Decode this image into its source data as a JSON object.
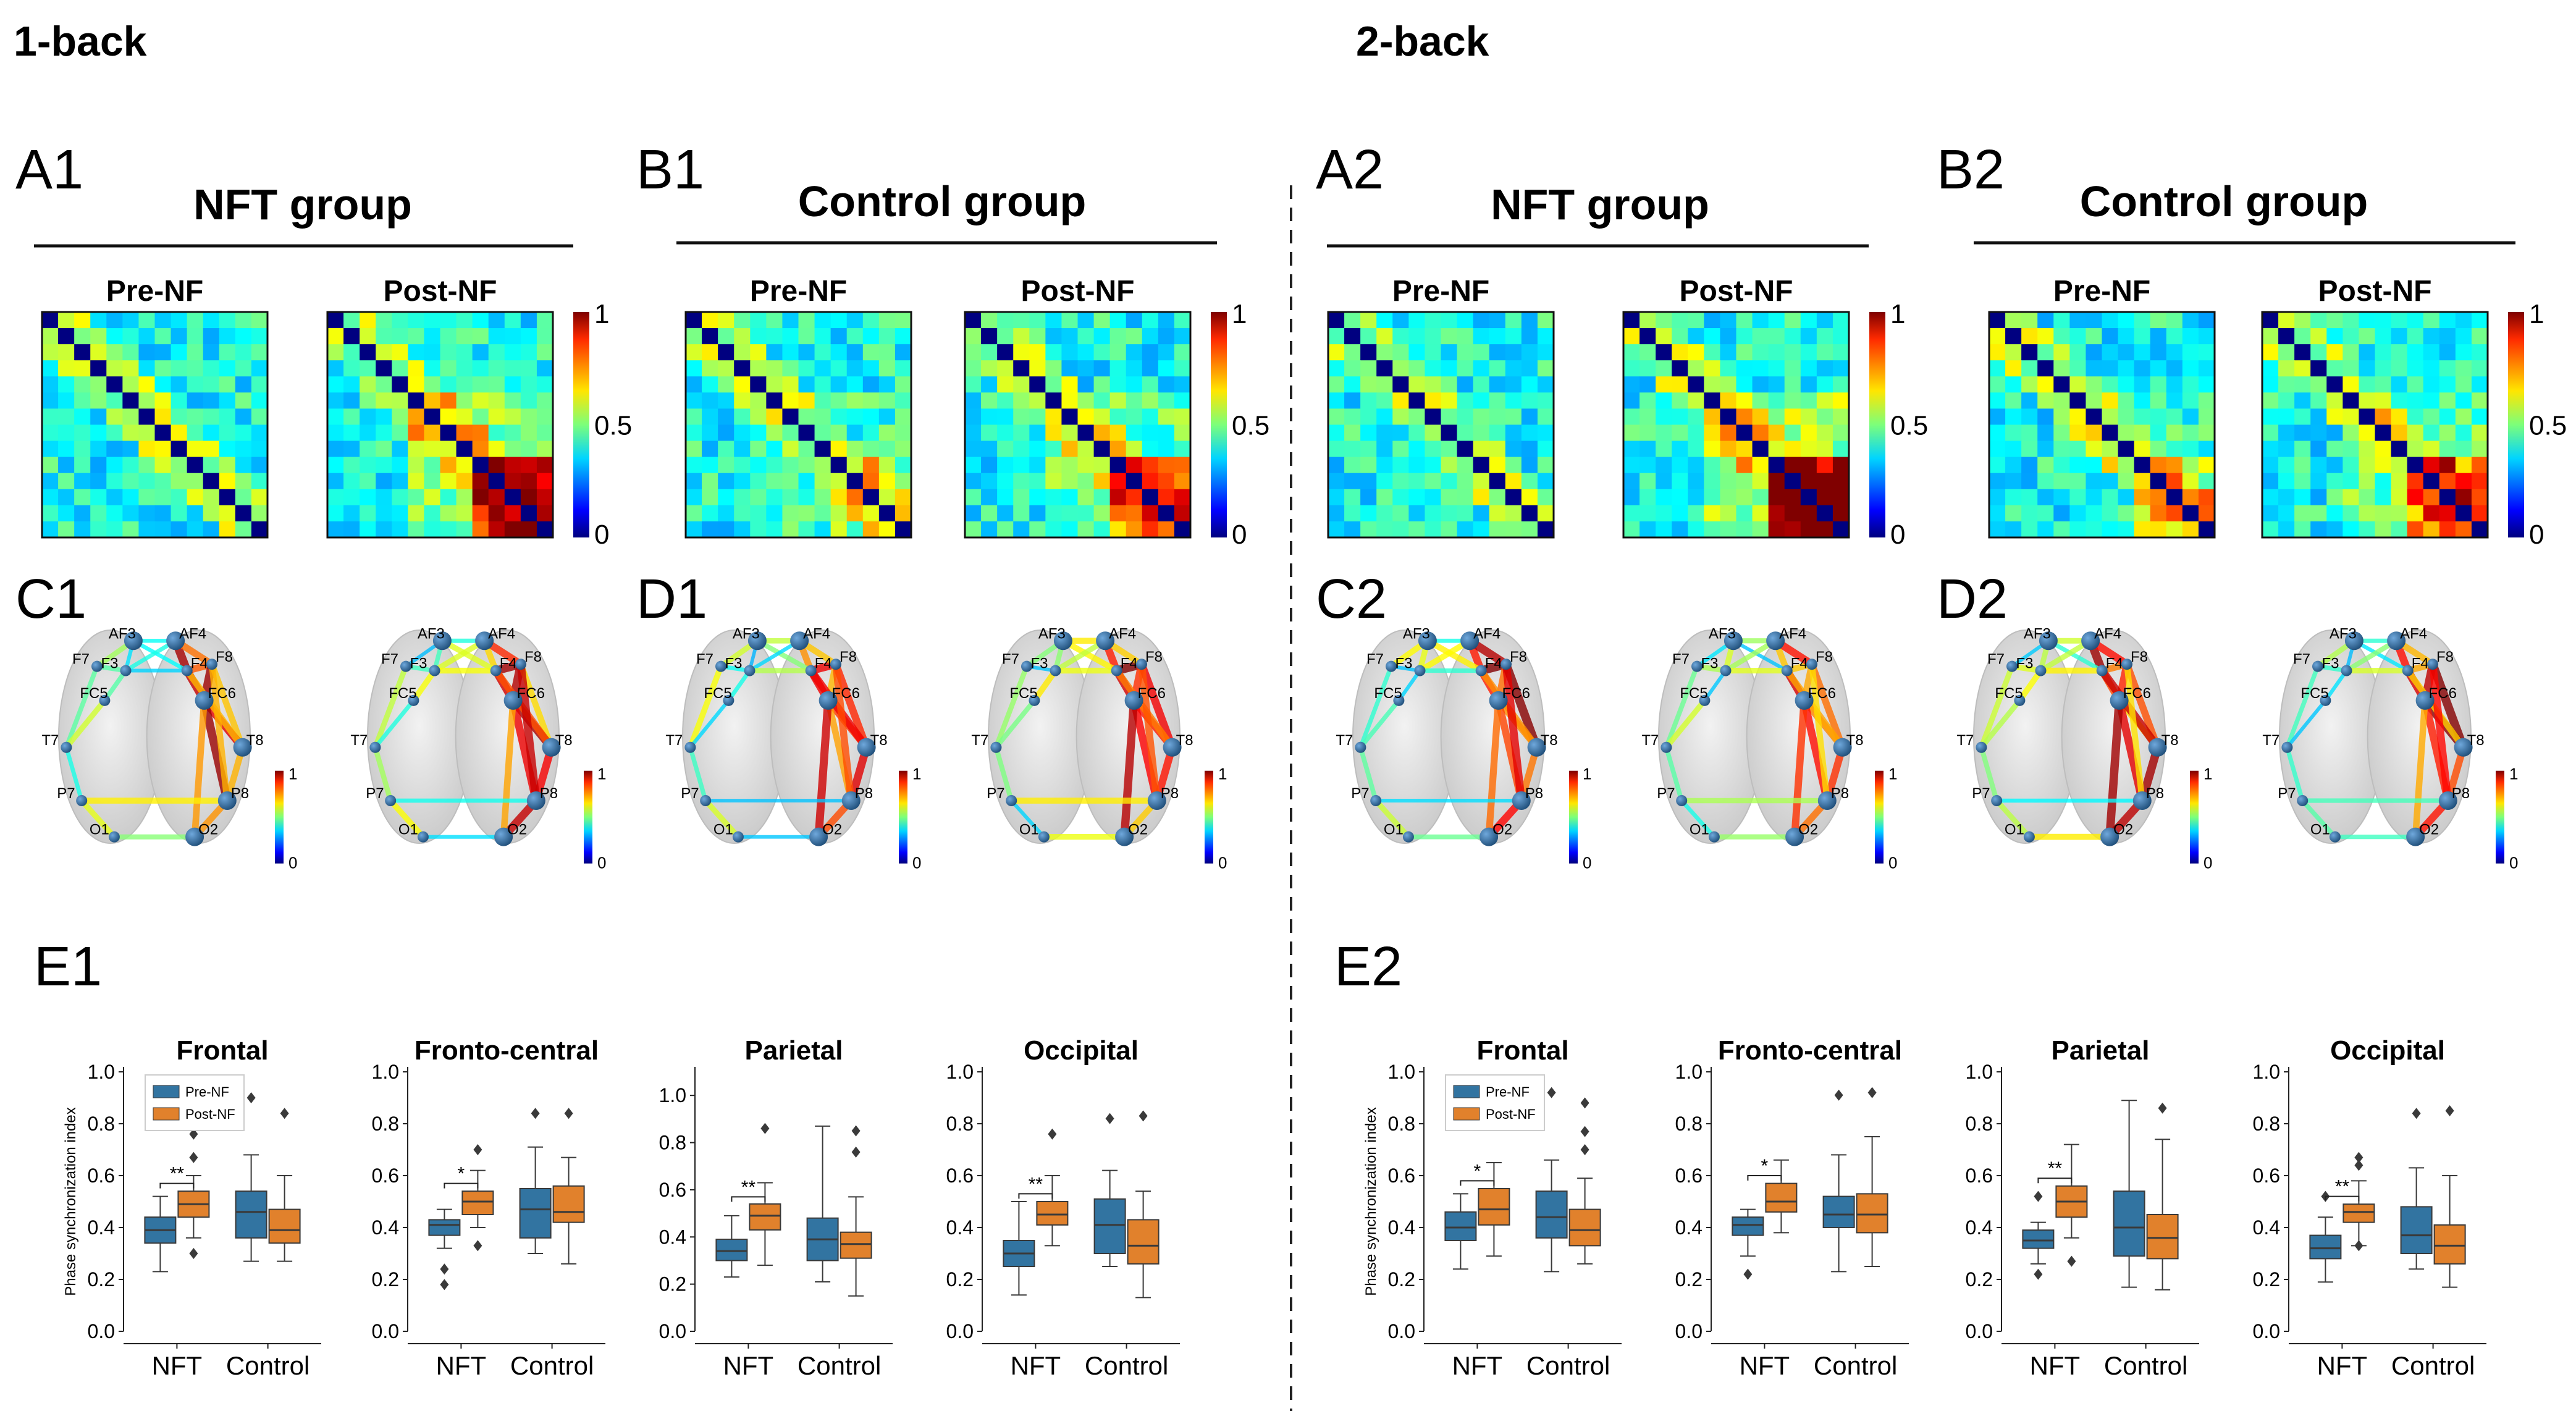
{
  "conditions": [
    {
      "title": "1-back",
      "panels": {
        "A": "A1",
        "B": "B1",
        "C": "C1",
        "D": "D1",
        "E": "E1"
      }
    },
    {
      "title": "2-back",
      "panels": {
        "A": "A2",
        "B": "B2",
        "C": "C2",
        "D": "D2",
        "E": "E2"
      }
    }
  ],
  "groups": {
    "nft": "NFT group",
    "control": "Control group"
  },
  "sessions": {
    "pre": "Pre-NF",
    "post": "Post-NF"
  },
  "colorbar_ticks": {
    "max": "1",
    "mid": "0.5",
    "min": "0"
  },
  "electrodes": [
    "AF3",
    "AF4",
    "F7",
    "F3",
    "F4",
    "F8",
    "FC5",
    "FC6",
    "T7",
    "T8",
    "P7",
    "P8",
    "O1",
    "O2"
  ],
  "colors": {
    "pre": "#3274a1",
    "post": "#e1812c",
    "divider": "#222222"
  },
  "boxplot_common": {
    "ylabel": "Phase synchronization index",
    "categories": [
      "NFT",
      "Control"
    ],
    "legend": [
      "Pre-NF",
      "Post-NF"
    ]
  },
  "chart_data": [
    {
      "condition": "1-back",
      "type": "boxplot",
      "title": "Frontal",
      "ylim": [
        0,
        1.0
      ],
      "yticks": [
        "0.0",
        "0.2",
        "0.4",
        "0.6",
        "0.8",
        "1.0"
      ],
      "sig": "**",
      "groups": [
        {
          "name": "NFT",
          "pre": {
            "q1": 0.34,
            "med": 0.39,
            "q3": 0.44,
            "wl": 0.23,
            "wh": 0.52,
            "out": []
          },
          "post": {
            "q1": 0.44,
            "med": 0.49,
            "q3": 0.54,
            "wl": 0.36,
            "wh": 0.6,
            "out": [
              0.3,
              0.67,
              0.76
            ]
          }
        },
        {
          "name": "Control",
          "pre": {
            "q1": 0.36,
            "med": 0.46,
            "q3": 0.54,
            "wl": 0.27,
            "wh": 0.68,
            "out": [
              0.9
            ]
          },
          "post": {
            "q1": 0.34,
            "med": 0.39,
            "q3": 0.47,
            "wl": 0.27,
            "wh": 0.6,
            "out": [
              0.84
            ]
          }
        }
      ]
    },
    {
      "condition": "1-back",
      "type": "boxplot",
      "title": "Fronto-central",
      "ylim": [
        0,
        1.0
      ],
      "yticks": [
        "0.0",
        "0.2",
        "0.4",
        "0.6",
        "0.8",
        "1.0"
      ],
      "sig": "*",
      "groups": [
        {
          "name": "NFT",
          "pre": {
            "q1": 0.37,
            "med": 0.41,
            "q3": 0.43,
            "wl": 0.32,
            "wh": 0.47,
            "out": [
              0.24,
              0.18
            ]
          },
          "post": {
            "q1": 0.45,
            "med": 0.5,
            "q3": 0.54,
            "wl": 0.4,
            "wh": 0.62,
            "out": [
              0.7,
              0.33
            ]
          }
        },
        {
          "name": "Control",
          "pre": {
            "q1": 0.36,
            "med": 0.47,
            "q3": 0.55,
            "wl": 0.3,
            "wh": 0.71,
            "out": [
              0.84
            ]
          },
          "post": {
            "q1": 0.42,
            "med": 0.46,
            "q3": 0.56,
            "wl": 0.26,
            "wh": 0.67,
            "out": [
              0.84
            ]
          }
        }
      ]
    },
    {
      "condition": "1-back",
      "type": "boxplot",
      "title": "Parietal",
      "ylim": [
        0,
        1.1
      ],
      "yticks": [
        "0.0",
        "0.2",
        "0.4",
        "0.6",
        "0.8",
        "1.0"
      ],
      "sig": "**",
      "groups": [
        {
          "name": "NFT",
          "pre": {
            "q1": 0.3,
            "med": 0.34,
            "q3": 0.39,
            "wl": 0.23,
            "wh": 0.49,
            "out": []
          },
          "post": {
            "q1": 0.43,
            "med": 0.49,
            "q3": 0.54,
            "wl": 0.28,
            "wh": 0.63,
            "out": [
              0.86
            ]
          }
        },
        {
          "name": "Control",
          "pre": {
            "q1": 0.3,
            "med": 0.39,
            "q3": 0.48,
            "wl": 0.21,
            "wh": 0.87,
            "out": []
          },
          "post": {
            "q1": 0.31,
            "med": 0.37,
            "q3": 0.42,
            "wl": 0.15,
            "wh": 0.57,
            "out": [
              0.76,
              0.85
            ]
          }
        }
      ]
    },
    {
      "condition": "1-back",
      "type": "boxplot",
      "title": "Occipital",
      "ylim": [
        0,
        1.0
      ],
      "yticks": [
        "0.0",
        "0.2",
        "0.4",
        "0.6",
        "0.8",
        "1.0"
      ],
      "sig": "**",
      "groups": [
        {
          "name": "NFT",
          "pre": {
            "q1": 0.25,
            "med": 0.3,
            "q3": 0.35,
            "wl": 0.14,
            "wh": 0.5,
            "out": []
          },
          "post": {
            "q1": 0.41,
            "med": 0.45,
            "q3": 0.5,
            "wl": 0.33,
            "wh": 0.6,
            "out": [
              0.76
            ]
          }
        },
        {
          "name": "Control",
          "pre": {
            "q1": 0.3,
            "med": 0.41,
            "q3": 0.51,
            "wl": 0.25,
            "wh": 0.62,
            "out": [
              0.82
            ]
          },
          "post": {
            "q1": 0.26,
            "med": 0.33,
            "q3": 0.43,
            "wl": 0.13,
            "wh": 0.54,
            "out": [
              0.83
            ]
          }
        }
      ]
    },
    {
      "condition": "2-back",
      "type": "boxplot",
      "title": "Frontal",
      "ylim": [
        0,
        1.0
      ],
      "yticks": [
        "0.0",
        "0.2",
        "0.4",
        "0.6",
        "0.8",
        "1.0"
      ],
      "sig": "*",
      "groups": [
        {
          "name": "NFT",
          "pre": {
            "q1": 0.35,
            "med": 0.4,
            "q3": 0.46,
            "wl": 0.24,
            "wh": 0.53,
            "out": []
          },
          "post": {
            "q1": 0.41,
            "med": 0.47,
            "q3": 0.55,
            "wl": 0.29,
            "wh": 0.65,
            "out": []
          }
        },
        {
          "name": "Control",
          "pre": {
            "q1": 0.36,
            "med": 0.44,
            "q3": 0.54,
            "wl": 0.23,
            "wh": 0.66,
            "out": [
              0.92
            ]
          },
          "post": {
            "q1": 0.33,
            "med": 0.39,
            "q3": 0.47,
            "wl": 0.26,
            "wh": 0.59,
            "out": [
              0.7,
              0.77,
              0.88
            ]
          }
        }
      ]
    },
    {
      "condition": "2-back",
      "type": "boxplot",
      "title": "Fronto-central",
      "ylim": [
        0,
        1.0
      ],
      "yticks": [
        "0.0",
        "0.2",
        "0.4",
        "0.6",
        "0.8",
        "1.0"
      ],
      "sig": "*",
      "groups": [
        {
          "name": "NFT",
          "pre": {
            "q1": 0.37,
            "med": 0.41,
            "q3": 0.44,
            "wl": 0.29,
            "wh": 0.47,
            "out": [
              0.22
            ]
          },
          "post": {
            "q1": 0.46,
            "med": 0.5,
            "q3": 0.57,
            "wl": 0.38,
            "wh": 0.66,
            "out": []
          }
        },
        {
          "name": "Control",
          "pre": {
            "q1": 0.4,
            "med": 0.45,
            "q3": 0.52,
            "wl": 0.23,
            "wh": 0.68,
            "out": [
              0.91
            ]
          },
          "post": {
            "q1": 0.38,
            "med": 0.45,
            "q3": 0.53,
            "wl": 0.25,
            "wh": 0.75,
            "out": [
              0.92
            ]
          }
        }
      ]
    },
    {
      "condition": "2-back",
      "type": "boxplot",
      "title": "Parietal",
      "ylim": [
        0,
        1.0
      ],
      "yticks": [
        "0.0",
        "0.2",
        "0.4",
        "0.6",
        "0.8",
        "1.0"
      ],
      "sig": "**",
      "groups": [
        {
          "name": "NFT",
          "pre": {
            "q1": 0.32,
            "med": 0.35,
            "q3": 0.39,
            "wl": 0.26,
            "wh": 0.42,
            "out": [
              0.22,
              0.52
            ]
          },
          "post": {
            "q1": 0.44,
            "med": 0.5,
            "q3": 0.56,
            "wl": 0.36,
            "wh": 0.72,
            "out": [
              0.27
            ]
          }
        },
        {
          "name": "Control",
          "pre": {
            "q1": 0.29,
            "med": 0.4,
            "q3": 0.54,
            "wl": 0.17,
            "wh": 0.89,
            "out": []
          },
          "post": {
            "q1": 0.28,
            "med": 0.36,
            "q3": 0.45,
            "wl": 0.16,
            "wh": 0.74,
            "out": [
              0.86
            ]
          }
        }
      ]
    },
    {
      "condition": "2-back",
      "type": "boxplot",
      "title": "Occipital",
      "ylim": [
        0,
        1.0
      ],
      "yticks": [
        "0.0",
        "0.2",
        "0.4",
        "0.6",
        "0.8",
        "1.0"
      ],
      "sig": "**",
      "groups": [
        {
          "name": "NFT",
          "pre": {
            "q1": 0.28,
            "med": 0.32,
            "q3": 0.37,
            "wl": 0.19,
            "wh": 0.44,
            "out": [
              0.52
            ]
          },
          "post": {
            "q1": 0.42,
            "med": 0.46,
            "q3": 0.49,
            "wl": 0.33,
            "wh": 0.58,
            "out": [
              0.67,
              0.64,
              0.33
            ]
          }
        },
        {
          "name": "Control",
          "pre": {
            "q1": 0.3,
            "med": 0.37,
            "q3": 0.48,
            "wl": 0.24,
            "wh": 0.63,
            "out": [
              0.84
            ]
          },
          "post": {
            "q1": 0.26,
            "med": 0.33,
            "q3": 0.41,
            "wl": 0.17,
            "wh": 0.6,
            "out": [
              0.85
            ]
          }
        }
      ]
    }
  ]
}
